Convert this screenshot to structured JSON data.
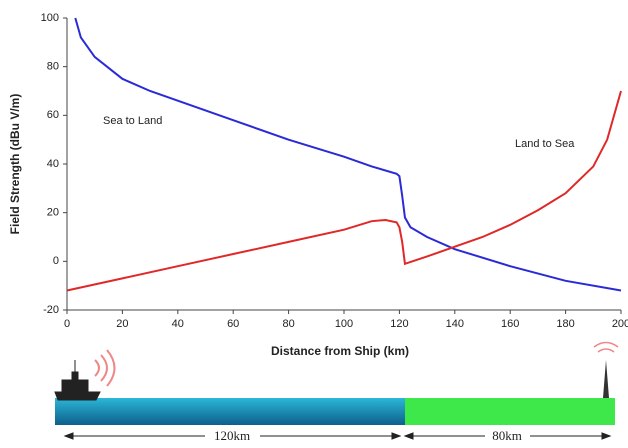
{
  "chart_data": {
    "type": "line",
    "x_label": "Distance from Ship (km)",
    "y_label": "Field Strength (dBu V/m)",
    "xlim": [
      0,
      200
    ],
    "xticks": [
      0,
      20,
      40,
      60,
      80,
      100,
      120,
      140,
      160,
      180,
      200
    ],
    "ylim": [
      -20,
      100
    ],
    "yticks": [
      -20,
      0,
      20,
      40,
      60,
      80,
      100
    ],
    "series": [
      {
        "name": "Sea to Land",
        "color": "#2a2ad8",
        "x": [
          3,
          5,
          10,
          20,
          30,
          40,
          60,
          80,
          100,
          110,
          119,
          120,
          121,
          122,
          124,
          130,
          140,
          160,
          180,
          200
        ],
        "values": [
          100,
          92,
          84,
          75,
          70,
          66,
          58,
          50,
          43,
          39,
          36,
          35,
          27,
          18,
          14,
          10,
          5,
          -2,
          -8,
          -12
        ]
      },
      {
        "name": "Land to Sea",
        "color": "#e02828",
        "x": [
          0,
          20,
          40,
          60,
          80,
          100,
          110,
          115,
          119,
          120,
          121,
          122,
          130,
          140,
          150,
          160,
          170,
          180,
          190,
          195,
          200
        ],
        "values": [
          -12,
          -7,
          -2,
          3,
          8,
          13,
          16.5,
          17,
          16,
          14,
          8,
          -1,
          2,
          6,
          10,
          15,
          21,
          28,
          39,
          50,
          70
        ]
      }
    ]
  },
  "diagram": {
    "sea_distance": "120km",
    "land_distance": "80km"
  }
}
